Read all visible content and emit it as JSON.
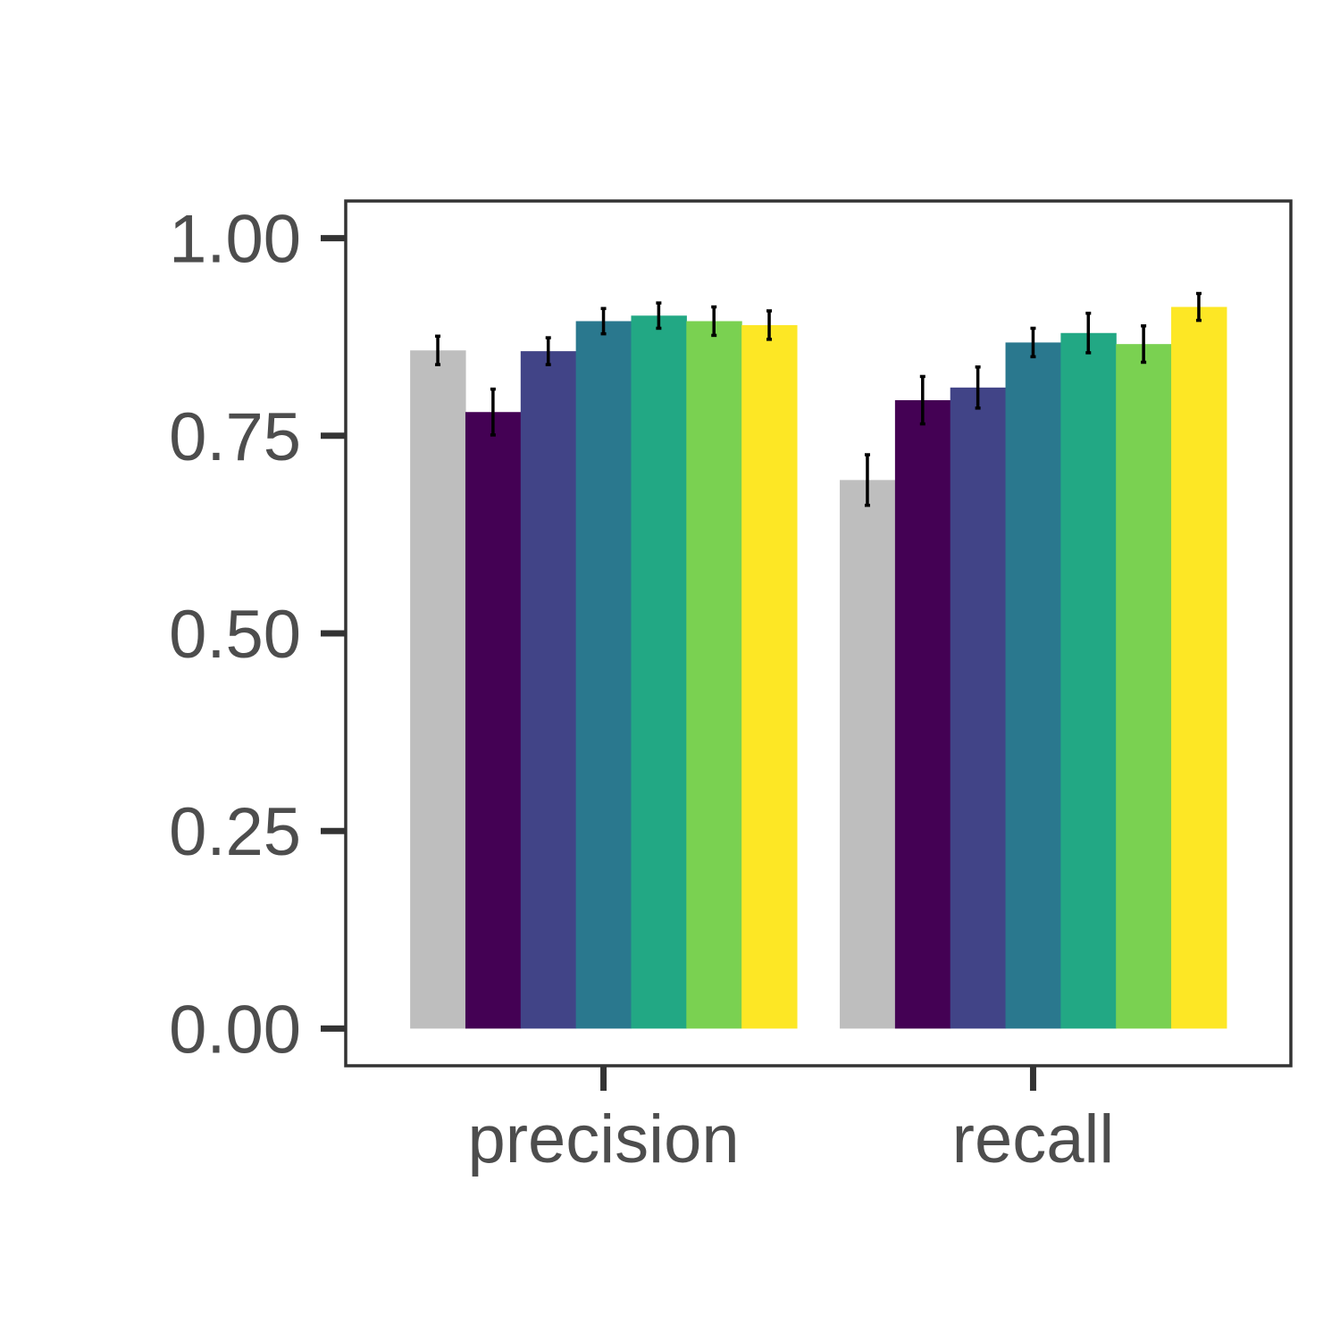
{
  "chart_data": {
    "type": "bar",
    "categories": [
      "precision",
      "recall"
    ],
    "series": [
      {
        "color": "#bebebe",
        "values": [
          0.858,
          0.694
        ],
        "errors": [
          0.018,
          0.032
        ]
      },
      {
        "color": "#440154",
        "values": [
          0.78,
          0.795
        ],
        "errors": [
          0.029,
          0.03
        ]
      },
      {
        "color": "#414487",
        "values": [
          0.857,
          0.811
        ],
        "errors": [
          0.017,
          0.026
        ]
      },
      {
        "color": "#2a788e",
        "values": [
          0.895,
          0.868
        ],
        "errors": [
          0.016,
          0.018
        ]
      },
      {
        "color": "#22a884",
        "values": [
          0.902,
          0.88
        ],
        "errors": [
          0.016,
          0.025
        ]
      },
      {
        "color": "#7ad151",
        "values": [
          0.895,
          0.866
        ],
        "errors": [
          0.018,
          0.023
        ]
      },
      {
        "color": "#fde725",
        "values": [
          0.89,
          0.913
        ],
        "errors": [
          0.018,
          0.017
        ]
      }
    ],
    "title": "",
    "xlabel": "",
    "ylabel": "",
    "ylim": [
      -0.047,
      1.047
    ],
    "yticks": [
      "0.00",
      "0.25",
      "0.50",
      "0.75",
      "1.00"
    ],
    "grid": false,
    "legend": "none",
    "error_bars": true
  }
}
